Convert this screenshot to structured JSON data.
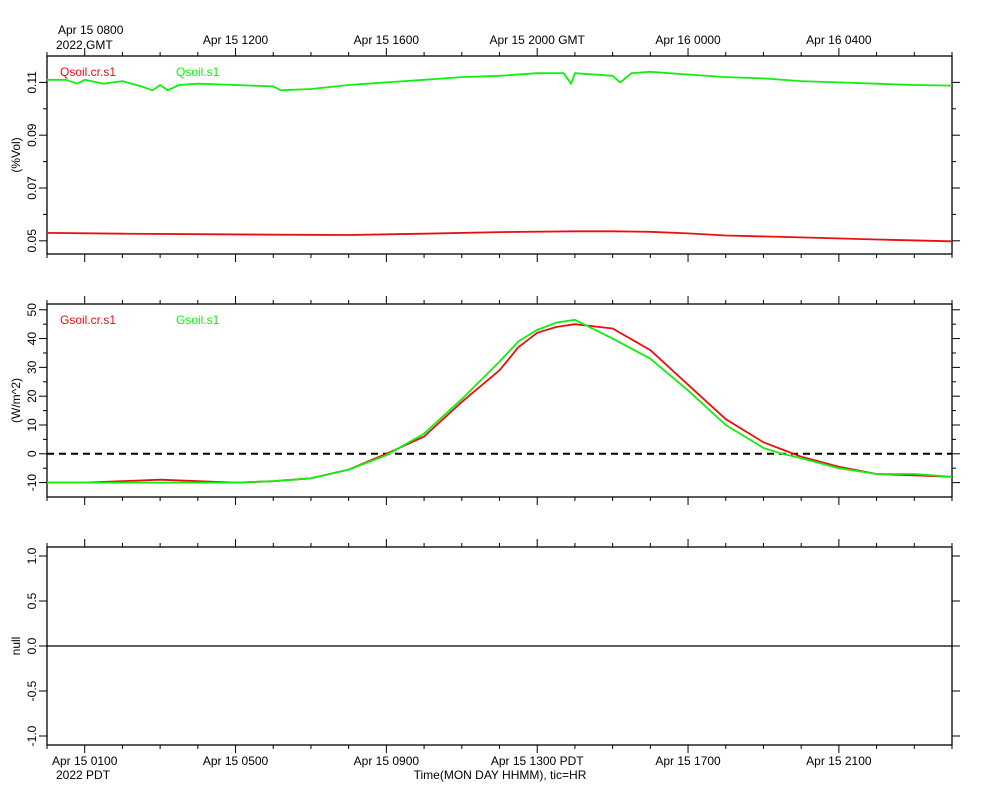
{
  "header": {
    "gmt_first": "Apr 15 0800",
    "gmt_year": "2022 GMT",
    "gmt_ticks": [
      "Apr 15 1200",
      "Apr 15 1600",
      "Apr 15 2000 GMT",
      "Apr 16 0000",
      "Apr 16 0400"
    ]
  },
  "footer": {
    "pdt_ticks": [
      "Apr 15 0100",
      "Apr 15 0500",
      "Apr 15 0900",
      "Apr 15 1300 PDT",
      "Apr 15 1700",
      "Apr 15 2100"
    ],
    "pdt_year": "2022 PDT",
    "xlabel": "Time(MON DAY HHMM), tic=HR"
  },
  "colors": {
    "red": "#e8100f",
    "green": "#10f010",
    "axis": "#000000"
  },
  "chart_data": [
    {
      "type": "line",
      "ylabel": "(%Vol)",
      "ylim": [
        0.045,
        0.12
      ],
      "xlim": [
        0,
        24
      ],
      "yticks": [
        "0.05",
        "0.07",
        "0.09",
        "0.11"
      ],
      "series": [
        {
          "name": "Qsoil.cr.s1",
          "color": "red",
          "points": [
            [
              0,
              0.053
            ],
            [
              2,
              0.0527
            ],
            [
              4,
              0.0525
            ],
            [
              6,
              0.0523
            ],
            [
              8,
              0.0522
            ],
            [
              10,
              0.0527
            ],
            [
              12,
              0.0533
            ],
            [
              14,
              0.0536
            ],
            [
              15,
              0.0536
            ],
            [
              16,
              0.0534
            ],
            [
              17,
              0.0528
            ],
            [
              18,
              0.052
            ],
            [
              20,
              0.0513
            ],
            [
              22,
              0.0505
            ],
            [
              24,
              0.0498
            ]
          ]
        },
        {
          "name": "Qsoil.s1",
          "color": "green",
          "points": [
            [
              0,
              0.111
            ],
            [
              0.5,
              0.111
            ],
            [
              0.8,
              0.1095
            ],
            [
              1,
              0.111
            ],
            [
              1.5,
              0.1095
            ],
            [
              2,
              0.1105
            ],
            [
              2.5,
              0.1085
            ],
            [
              2.8,
              0.107
            ],
            [
              3,
              0.109
            ],
            [
              3.2,
              0.107
            ],
            [
              3.5,
              0.109
            ],
            [
              4,
              0.1095
            ],
            [
              5,
              0.109
            ],
            [
              6,
              0.1085
            ],
            [
              6.2,
              0.107
            ],
            [
              7,
              0.1075
            ],
            [
              8,
              0.109
            ],
            [
              9,
              0.11
            ],
            [
              10,
              0.111
            ],
            [
              11,
              0.112
            ],
            [
              12,
              0.1125
            ],
            [
              13,
              0.1135
            ],
            [
              13.7,
              0.1135
            ],
            [
              13.9,
              0.1095
            ],
            [
              14,
              0.1135
            ],
            [
              15,
              0.1125
            ],
            [
              15.2,
              0.11
            ],
            [
              15.5,
              0.1135
            ],
            [
              16,
              0.114
            ],
            [
              17,
              0.113
            ],
            [
              18,
              0.112
            ],
            [
              19,
              0.1115
            ],
            [
              20,
              0.1105
            ],
            [
              21,
              0.11
            ],
            [
              22,
              0.1095
            ],
            [
              23,
              0.109
            ],
            [
              24,
              0.1088
            ]
          ]
        }
      ]
    },
    {
      "type": "line",
      "ylabel": "(W/m^2)",
      "ylim": [
        -15,
        52
      ],
      "xlim": [
        0,
        24
      ],
      "yticks": [
        "-10",
        "0",
        "10",
        "20",
        "30",
        "40",
        "50"
      ],
      "reference_line": {
        "y": 0,
        "style": "dashed"
      },
      "series": [
        {
          "name": "Gsoil.cr.s1",
          "color": "red",
          "points": [
            [
              0,
              -10
            ],
            [
              1,
              -10
            ],
            [
              2,
              -9.5
            ],
            [
              3,
              -9
            ],
            [
              4,
              -9.5
            ],
            [
              5,
              -10
            ],
            [
              6,
              -9.5
            ],
            [
              7,
              -8.5
            ],
            [
              8,
              -5.5
            ],
            [
              9,
              0
            ],
            [
              10,
              6
            ],
            [
              11,
              18
            ],
            [
              12,
              29
            ],
            [
              12.5,
              37
            ],
            [
              13,
              42
            ],
            [
              13.5,
              44
            ],
            [
              14,
              45
            ],
            [
              15,
              43.5
            ],
            [
              16,
              36
            ],
            [
              17,
              24
            ],
            [
              18,
              12
            ],
            [
              19,
              4
            ],
            [
              19.5,
              1.5
            ],
            [
              20,
              -1
            ],
            [
              21,
              -4.5
            ],
            [
              22,
              -7
            ],
            [
              23,
              -7.5
            ],
            [
              24,
              -8
            ]
          ]
        },
        {
          "name": "Gsoil.s1",
          "color": "green",
          "points": [
            [
              0,
              -10
            ],
            [
              2,
              -10
            ],
            [
              4,
              -10
            ],
            [
              5,
              -10
            ],
            [
              6,
              -9.5
            ],
            [
              7,
              -8.5
            ],
            [
              8,
              -5.5
            ],
            [
              9,
              -0.5
            ],
            [
              10,
              7
            ],
            [
              11,
              19
            ],
            [
              12,
              32
            ],
            [
              12.5,
              39
            ],
            [
              13,
              43
            ],
            [
              13.5,
              45.5
            ],
            [
              14,
              46.5
            ],
            [
              15,
              40
            ],
            [
              16,
              33
            ],
            [
              17,
              22
            ],
            [
              18,
              10
            ],
            [
              19,
              2
            ],
            [
              19.5,
              0
            ],
            [
              20,
              -1.5
            ],
            [
              21,
              -5
            ],
            [
              22,
              -7
            ],
            [
              23,
              -7
            ],
            [
              24,
              -8
            ]
          ]
        }
      ]
    },
    {
      "type": "line",
      "ylabel": "null",
      "ylim": [
        -1.1,
        1.1
      ],
      "xlim": [
        0,
        24
      ],
      "yticks": [
        "-1.0",
        "-0.5",
        "0.0",
        "0.5",
        "1.0"
      ],
      "series": [
        {
          "name": "",
          "color": "axis",
          "points": [
            [
              0,
              0
            ],
            [
              24,
              0
            ]
          ]
        }
      ]
    }
  ]
}
